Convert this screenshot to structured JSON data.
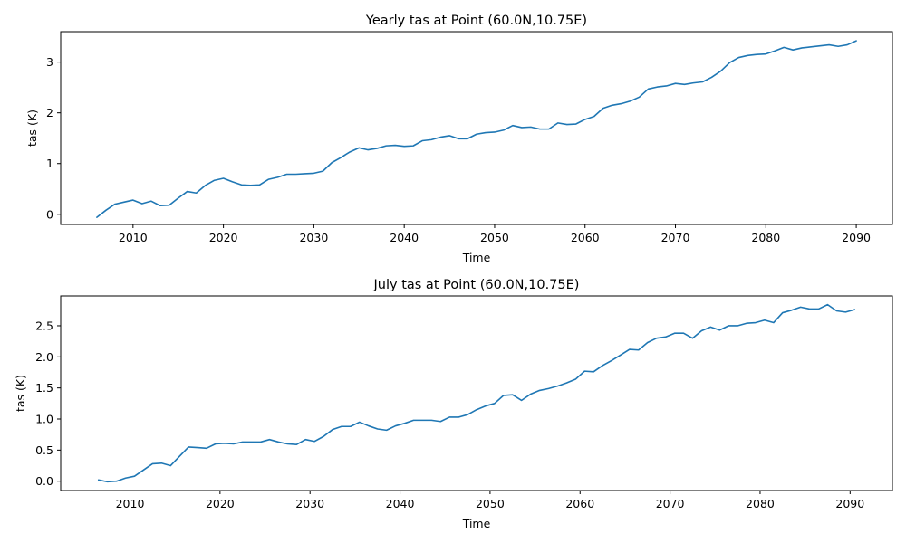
{
  "chart_data": [
    {
      "type": "line",
      "title": "Yearly tas at Point (60.0N,10.75E)",
      "xlabel": "Time",
      "ylabel": "tas (K)",
      "xlim": [
        2002,
        2094
      ],
      "ylim": [
        -0.2,
        3.6
      ],
      "xticks": [
        2010,
        2020,
        2030,
        2040,
        2050,
        2060,
        2070,
        2080,
        2090
      ],
      "yticks": [
        0,
        1,
        2,
        3
      ],
      "ytick_labels": [
        "0",
        "1",
        "2",
        "3"
      ],
      "series": [
        {
          "color": "#1f77b4",
          "x": [
            2006,
            2007,
            2008,
            2009,
            2010,
            2011,
            2012,
            2013,
            2014,
            2015,
            2016,
            2017,
            2018,
            2019,
            2020,
            2021,
            2022,
            2023,
            2024,
            2025,
            2026,
            2027,
            2028,
            2029,
            2030,
            2031,
            2032,
            2033,
            2034,
            2035,
            2036,
            2037,
            2038,
            2039,
            2040,
            2041,
            2042,
            2043,
            2044,
            2045,
            2046,
            2047,
            2048,
            2049,
            2050,
            2051,
            2052,
            2053,
            2054,
            2055,
            2056,
            2057,
            2058,
            2059,
            2060,
            2061,
            2062,
            2063,
            2064,
            2065,
            2066,
            2067,
            2068,
            2069,
            2070,
            2071,
            2072,
            2073,
            2074,
            2075,
            2076,
            2077,
            2078,
            2079,
            2080,
            2081,
            2082,
            2083,
            2084,
            2085,
            2086,
            2087,
            2088,
            2089,
            2090
          ],
          "y": [
            -0.06,
            0.08,
            0.2,
            0.24,
            0.28,
            0.21,
            0.26,
            0.17,
            0.18,
            0.32,
            0.45,
            0.42,
            0.57,
            0.67,
            0.71,
            0.64,
            0.58,
            0.57,
            0.58,
            0.69,
            0.73,
            0.79,
            0.79,
            0.8,
            0.81,
            0.85,
            1.02,
            1.12,
            1.23,
            1.31,
            1.27,
            1.3,
            1.35,
            1.36,
            1.34,
            1.35,
            1.45,
            1.47,
            1.52,
            1.55,
            1.49,
            1.49,
            1.58,
            1.61,
            1.62,
            1.66,
            1.75,
            1.71,
            1.72,
            1.68,
            1.68,
            1.8,
            1.77,
            1.78,
            1.87,
            1.93,
            2.09,
            2.15,
            2.18,
            2.23,
            2.31,
            2.47,
            2.51,
            2.53,
            2.58,
            2.56,
            2.59,
            2.61,
            2.7,
            2.82,
            2.99,
            3.09,
            3.13,
            3.15,
            3.16,
            3.22,
            3.29,
            3.24,
            3.28,
            3.3,
            3.32,
            3.34,
            3.31,
            3.34,
            3.42
          ]
        }
      ]
    },
    {
      "type": "line",
      "title": "July tas at Point (60.0N,10.75E)",
      "xlabel": "Time",
      "ylabel": "tas (K)",
      "xlim": [
        2002.3,
        2094.7
      ],
      "ylim": [
        -0.15,
        2.98
      ],
      "xticks": [
        2010,
        2020,
        2030,
        2040,
        2050,
        2060,
        2070,
        2080,
        2090
      ],
      "yticks": [
        0,
        0.5,
        1.0,
        1.5,
        2.0,
        2.5
      ],
      "ytick_labels": [
        "0.0",
        "0.5",
        "1.0",
        "1.5",
        "2.0",
        "2.5"
      ],
      "series": [
        {
          "color": "#1f77b4",
          "x": [
            2006.5,
            2007.5,
            2008.5,
            2009.5,
            2010.5,
            2011.5,
            2012.5,
            2013.5,
            2014.5,
            2015.5,
            2016.5,
            2017.5,
            2018.5,
            2019.5,
            2020.5,
            2021.5,
            2022.5,
            2023.5,
            2024.5,
            2025.5,
            2026.5,
            2027.5,
            2028.5,
            2029.5,
            2030.5,
            2031.5,
            2032.5,
            2033.5,
            2034.5,
            2035.5,
            2036.5,
            2037.5,
            2038.5,
            2039.5,
            2040.5,
            2041.5,
            2042.5,
            2043.5,
            2044.5,
            2045.5,
            2046.5,
            2047.5,
            2048.5,
            2049.5,
            2050.5,
            2051.5,
            2052.5,
            2053.5,
            2054.5,
            2055.5,
            2056.5,
            2057.5,
            2058.5,
            2059.5,
            2060.5,
            2061.5,
            2062.5,
            2063.5,
            2064.5,
            2065.5,
            2066.5,
            2067.5,
            2068.5,
            2069.5,
            2070.5,
            2071.5,
            2072.5,
            2073.5,
            2074.5,
            2075.5,
            2076.5,
            2077.5,
            2078.5,
            2079.5,
            2080.5,
            2081.5,
            2082.5,
            2083.5,
            2084.5,
            2085.5,
            2086.5,
            2087.5,
            2088.5,
            2089.5,
            2090.5
          ],
          "y": [
            0.02,
            -0.01,
            0.0,
            0.05,
            0.08,
            0.18,
            0.28,
            0.29,
            0.25,
            0.4,
            0.55,
            0.54,
            0.53,
            0.6,
            0.61,
            0.6,
            0.63,
            0.63,
            0.63,
            0.67,
            0.63,
            0.6,
            0.59,
            0.67,
            0.64,
            0.72,
            0.83,
            0.88,
            0.88,
            0.95,
            0.89,
            0.84,
            0.82,
            0.89,
            0.93,
            0.98,
            0.98,
            0.98,
            0.96,
            1.03,
            1.03,
            1.07,
            1.15,
            1.21,
            1.25,
            1.38,
            1.39,
            1.3,
            1.4,
            1.46,
            1.49,
            1.53,
            1.58,
            1.64,
            1.77,
            1.76,
            1.86,
            1.94,
            2.03,
            2.12,
            2.11,
            2.23,
            2.3,
            2.32,
            2.38,
            2.38,
            2.3,
            2.42,
            2.48,
            2.43,
            2.5,
            2.5,
            2.54,
            2.55,
            2.59,
            2.55,
            2.71,
            2.75,
            2.8,
            2.77,
            2.77,
            2.84,
            2.74,
            2.72,
            2.76
          ]
        }
      ]
    }
  ]
}
